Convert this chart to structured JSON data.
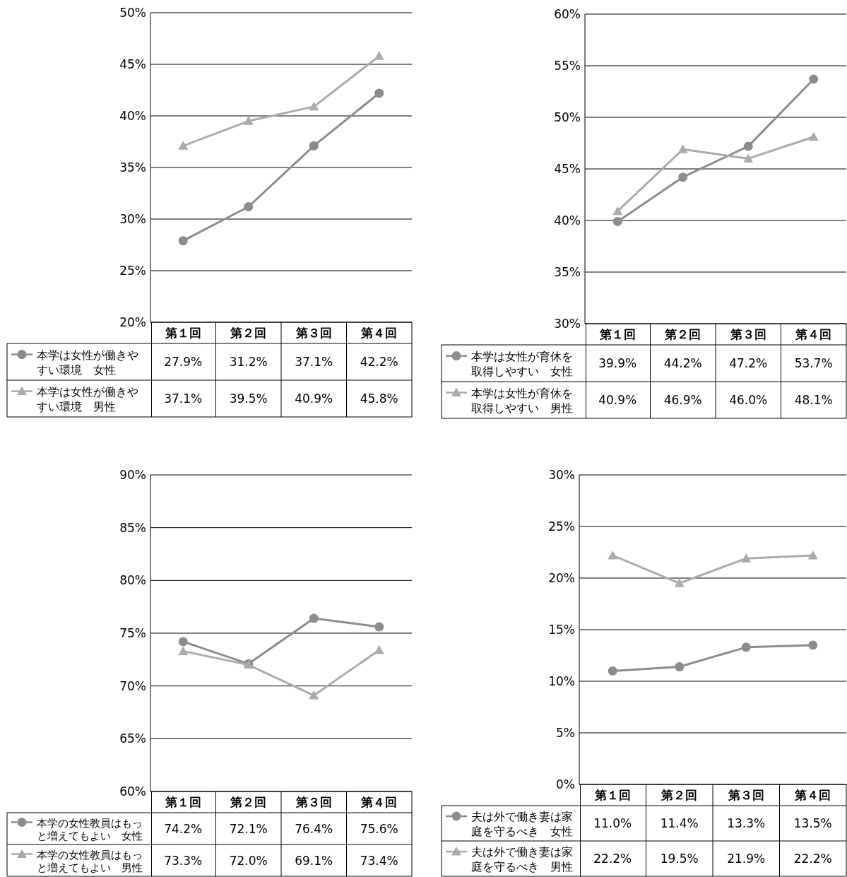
{
  "chart_data": [
    {
      "type": "line",
      "categories": [
        "第１回",
        "第２回",
        "第３回",
        "第４回"
      ],
      "ylim": [
        20,
        50
      ],
      "yticks": [
        {
          "value": 20,
          "label": "20%"
        },
        {
          "value": 25,
          "label": "25%"
        },
        {
          "value": 30,
          "label": "30%"
        },
        {
          "value": 35,
          "label": "35%"
        },
        {
          "value": 40,
          "label": "40%"
        },
        {
          "value": 45,
          "label": "45%"
        },
        {
          "value": 50,
          "label": "50%"
        }
      ],
      "grid": "y",
      "legend": "bottom",
      "series": [
        {
          "name": "本学は女性が働きやすい環境　女性",
          "color": "#8c8c8c",
          "marker": "circle",
          "values": [
            27.9,
            31.2,
            37.1,
            42.2
          ],
          "value_labels": [
            "27.9%",
            "31.2%",
            "37.1%",
            "42.2%"
          ]
        },
        {
          "name": "本学は女性が働きやすい環境　男性",
          "color": "#ababab",
          "marker": "triangle",
          "values": [
            37.1,
            39.5,
            40.9,
            45.8
          ],
          "value_labels": [
            "37.1%",
            "39.5%",
            "40.9%",
            "45.8%"
          ]
        }
      ]
    },
    {
      "type": "line",
      "categories": [
        "第１回",
        "第２回",
        "第３回",
        "第４回"
      ],
      "ylim": [
        30,
        60
      ],
      "yticks": [
        {
          "value": 30,
          "label": "30%"
        },
        {
          "value": 35,
          "label": "35%"
        },
        {
          "value": 40,
          "label": "40%"
        },
        {
          "value": 45,
          "label": "45%"
        },
        {
          "value": 50,
          "label": "50%"
        },
        {
          "value": 55,
          "label": "55%"
        },
        {
          "value": 60,
          "label": "60%"
        }
      ],
      "grid": "y",
      "legend": "bottom",
      "series": [
        {
          "name": "本学は女性が育休を取得しやすい　女性",
          "color": "#8c8c8c",
          "marker": "circle",
          "values": [
            39.9,
            44.2,
            47.2,
            53.7
          ],
          "value_labels": [
            "39.9%",
            "44.2%",
            "47.2%",
            "53.7%"
          ]
        },
        {
          "name": "本学は女性が育休を取得しやすい　男性",
          "color": "#ababab",
          "marker": "triangle",
          "values": [
            40.9,
            46.9,
            46.0,
            48.1
          ],
          "value_labels": [
            "40.9%",
            "46.9%",
            "46.0%",
            "48.1%"
          ]
        }
      ]
    },
    {
      "type": "line",
      "categories": [
        "第１回",
        "第２回",
        "第３回",
        "第４回"
      ],
      "ylim": [
        60,
        90
      ],
      "yticks": [
        {
          "value": 60,
          "label": "60%"
        },
        {
          "value": 65,
          "label": "65%"
        },
        {
          "value": 70,
          "label": "70%"
        },
        {
          "value": 75,
          "label": "75%"
        },
        {
          "value": 80,
          "label": "80%"
        },
        {
          "value": 85,
          "label": "85%"
        },
        {
          "value": 90,
          "label": "90%"
        }
      ],
      "grid": "y",
      "legend": "bottom",
      "series": [
        {
          "name": "本学の女性教員はもっと増えてもよい　女性",
          "color": "#8c8c8c",
          "marker": "circle",
          "values": [
            74.2,
            72.1,
            76.4,
            75.6
          ],
          "value_labels": [
            "74.2%",
            "72.1%",
            "76.4%",
            "75.6%"
          ]
        },
        {
          "name": "本学の女性教員はもっと増えてもよい　男性",
          "color": "#ababab",
          "marker": "triangle",
          "values": [
            73.3,
            72.0,
            69.1,
            73.4
          ],
          "value_labels": [
            "73.3%",
            "72.0%",
            "69.1%",
            "73.4%"
          ]
        }
      ]
    },
    {
      "type": "line",
      "categories": [
        "第１回",
        "第２回",
        "第３回",
        "第４回"
      ],
      "ylim": [
        0,
        30
      ],
      "yticks": [
        {
          "value": 0,
          "label": "0%"
        },
        {
          "value": 5,
          "label": "5%"
        },
        {
          "value": 10,
          "label": "10%"
        },
        {
          "value": 15,
          "label": "15%"
        },
        {
          "value": 20,
          "label": "20%"
        },
        {
          "value": 25,
          "label": "25%"
        },
        {
          "value": 30,
          "label": "30%"
        }
      ],
      "grid": "y",
      "legend": "bottom",
      "series": [
        {
          "name": "夫は外で働き妻は家庭を守るべき　女性",
          "color": "#8c8c8c",
          "marker": "circle",
          "values": [
            11.0,
            11.4,
            13.3,
            13.5
          ],
          "value_labels": [
            "11.0%",
            "11.4%",
            "13.3%",
            "13.5%"
          ]
        },
        {
          "name": "夫は外で働き妻は家庭を守るべき　男性",
          "color": "#ababab",
          "marker": "triangle",
          "values": [
            22.2,
            19.5,
            21.9,
            22.2
          ],
          "value_labels": [
            "22.2%",
            "19.5%",
            "21.9%",
            "22.2%"
          ]
        }
      ]
    }
  ]
}
